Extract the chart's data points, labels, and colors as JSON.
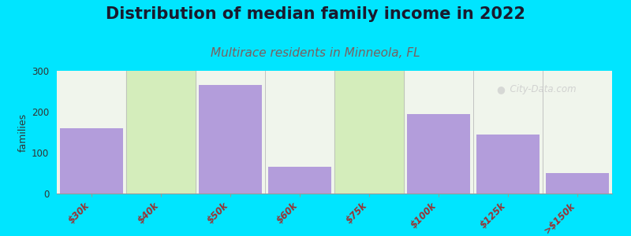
{
  "title": "Distribution of median family income in 2022",
  "subtitle": "Multirace residents in Minneola, FL",
  "subtitle_color": "#7a6060",
  "title_color": "#1a1a2e",
  "categories": [
    "$30k",
    "$40k",
    "$50k",
    "$60k",
    "$75k",
    "$100k",
    "$125k",
    ">$150k"
  ],
  "values": [
    160,
    0,
    265,
    65,
    0,
    195,
    145,
    50
  ],
  "bar_color": "#b39ddb",
  "gap_color": "#d4edbb",
  "background_outer": "#00e5ff",
  "background_chart_top": "#f5f5f0",
  "background_chart_bottom": "#e8f5e2",
  "ylabel": "families",
  "ylim": [
    0,
    300
  ],
  "yticks": [
    0,
    100,
    200,
    300
  ],
  "title_fontsize": 15,
  "subtitle_fontsize": 11,
  "tick_label_color": "#993333",
  "watermark": "  City-Data.com"
}
